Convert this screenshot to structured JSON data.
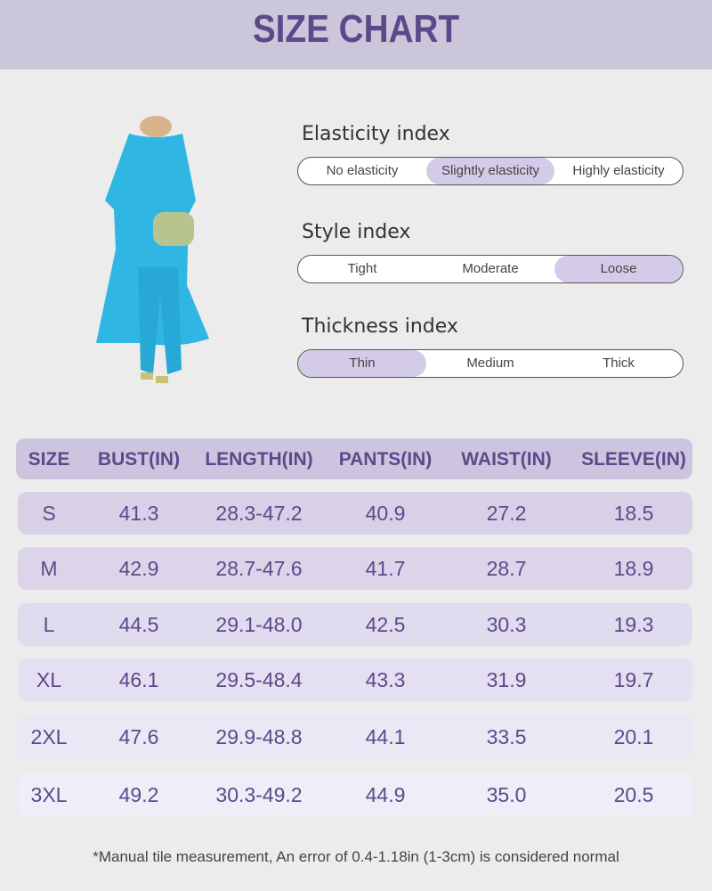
{
  "header": {
    "title": "SIZE CHART"
  },
  "indices": [
    {
      "title": "Elasticity index",
      "options": [
        "No elasticity",
        "Slightly elasticity",
        "Highly elasticity"
      ],
      "selected": 1
    },
    {
      "title": "Style index",
      "options": [
        "Tight",
        "Moderate",
        "Loose"
      ],
      "selected": 2
    },
    {
      "title": "Thickness index",
      "options": [
        "Thin",
        "Medium",
        "Thick"
      ],
      "selected": 0
    }
  ],
  "table": {
    "headers": [
      "SIZE",
      "BUST(IN)",
      "LENGTH(IN)",
      "PANTS(IN)",
      "WAIST(IN)",
      "SLEEVE(IN)"
    ],
    "rows": [
      [
        "S",
        "41.3",
        "28.3-47.2",
        "40.9",
        "27.2",
        "18.5"
      ],
      [
        "M",
        "42.9",
        "28.7-47.6",
        "41.7",
        "28.7",
        "18.9"
      ],
      [
        "L",
        "44.5",
        "29.1-48.0",
        "42.5",
        "30.3",
        "19.3"
      ],
      [
        "XL",
        "46.1",
        "29.5-48.4",
        "43.3",
        "31.9",
        "19.7"
      ],
      [
        "2XL",
        "47.6",
        "29.9-48.8",
        "44.1",
        "33.5",
        "20.1"
      ],
      [
        "3XL",
        "49.2",
        "30.3-49.2",
        "44.9",
        "35.0",
        "20.5"
      ]
    ]
  },
  "footnote": "*Manual tile measurement, An error of 0.4-1.18in (1-3cm) is considered normal"
}
